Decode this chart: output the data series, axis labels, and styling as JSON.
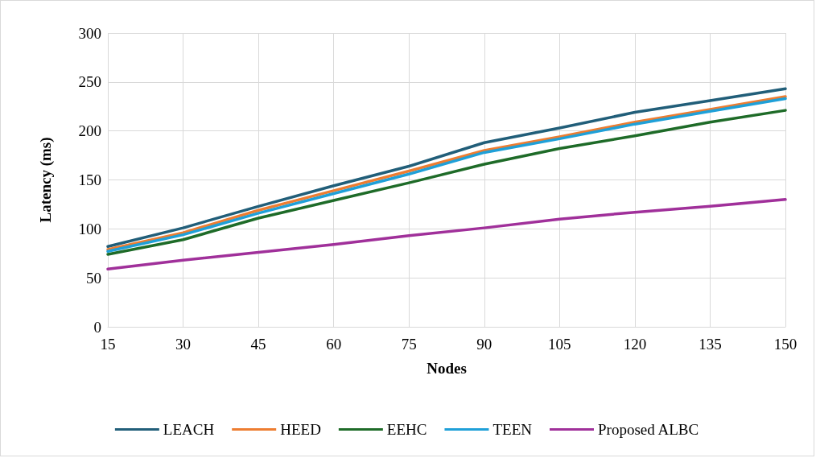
{
  "chart_data": {
    "type": "line",
    "xlabel": "Nodes",
    "ylabel": "Latency (ms)",
    "categories": [
      "15",
      "30",
      "45",
      "60",
      "75",
      "90",
      "105",
      "120",
      "135",
      "150"
    ],
    "ylim": [
      0,
      300
    ],
    "yticks": [
      0,
      50,
      100,
      150,
      200,
      250,
      300
    ],
    "grid": true,
    "legend": "bottom",
    "marker": "none",
    "line_style": "solid",
    "series": [
      {
        "name": "LEACH",
        "color": "#215e79",
        "values": [
          82,
          101,
          123,
          144,
          164,
          188,
          203,
          219,
          231,
          243
        ]
      },
      {
        "name": "HEED",
        "color": "#ed7d31",
        "values": [
          79,
          96,
          119,
          139,
          159,
          180,
          194,
          209,
          222,
          235
        ]
      },
      {
        "name": "EEHC",
        "color": "#1e6b28",
        "values": [
          74,
          89,
          111,
          129,
          147,
          166,
          182,
          195,
          209,
          221
        ]
      },
      {
        "name": "TEEN",
        "color": "#1fa0d8",
        "values": [
          77,
          94,
          116,
          136,
          156,
          178,
          192,
          207,
          220,
          233
        ]
      },
      {
        "name": "Proposed ALBC",
        "color": "#a0309a",
        "values": [
          59,
          68,
          76,
          84,
          93,
          101,
          110,
          117,
          123,
          130
        ]
      }
    ]
  }
}
